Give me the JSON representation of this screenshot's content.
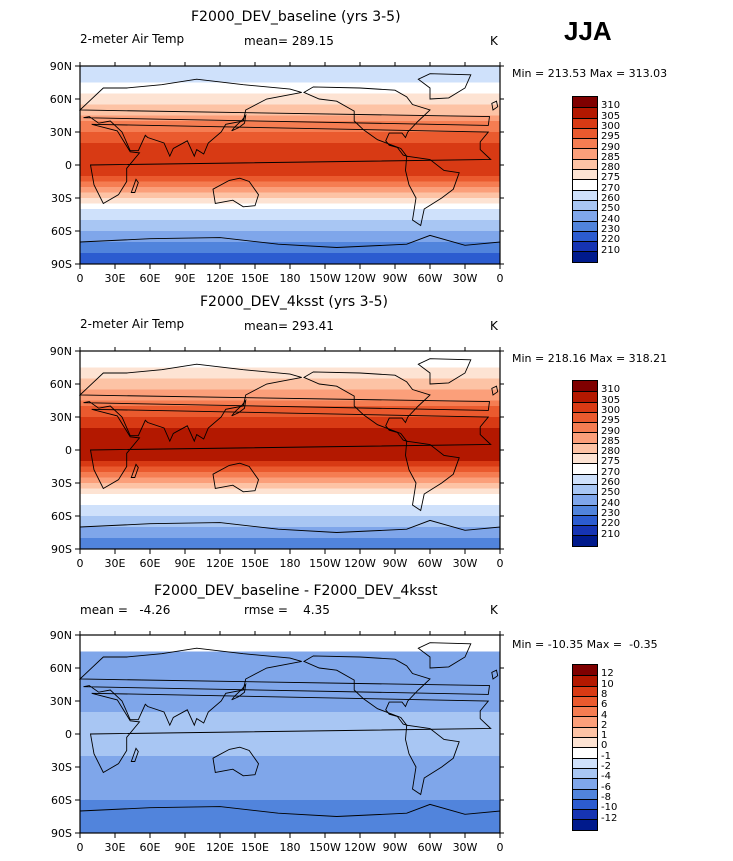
{
  "season": "JJA",
  "axis": {
    "lon_ticks": [
      "0",
      "30E",
      "60E",
      "90E",
      "120E",
      "150E",
      "180",
      "150W",
      "120W",
      "90W",
      "60W",
      "30W",
      "0"
    ],
    "lat_ticks": [
      "90N",
      "60N",
      "30N",
      "0",
      "30S",
      "60S",
      "90S"
    ]
  },
  "panels": [
    {
      "title": "F2000_DEV_baseline (yrs 3-5)",
      "left": "2-meter Air Temp",
      "center": "mean= 289.15",
      "right": "K",
      "minmax": "Min = 213.53 Max = 313.03",
      "colorbar": {
        "labels": [
          "310",
          "305",
          "300",
          "295",
          "290",
          "285",
          "280",
          "275",
          "270",
          "260",
          "250",
          "240",
          "230",
          "220",
          "210"
        ],
        "colors": [
          "#7f0000",
          "#b31800",
          "#d83a14",
          "#ea5a2e",
          "#f57d52",
          "#fb9f7a",
          "#fdc3a5",
          "#fde3d3",
          "#ffffff",
          "#cfe1fb",
          "#a8c6f3",
          "#7fa6ea",
          "#5184dc",
          "#2c5cd0",
          "#1634b3",
          "#001a8c"
        ]
      },
      "field": "baseline"
    },
    {
      "title": "F2000_DEV_4ksst (yrs 3-5)",
      "left": "2-meter Air Temp",
      "center": "mean= 293.41",
      "right": "K",
      "minmax": "Min = 218.16 Max = 318.21",
      "colorbar": {
        "labels": [
          "310",
          "305",
          "300",
          "295",
          "290",
          "285",
          "280",
          "275",
          "270",
          "260",
          "250",
          "240",
          "230",
          "220",
          "210"
        ],
        "colors": [
          "#7f0000",
          "#b31800",
          "#d83a14",
          "#ea5a2e",
          "#f57d52",
          "#fb9f7a",
          "#fdc3a5",
          "#fde3d3",
          "#ffffff",
          "#cfe1fb",
          "#a8c6f3",
          "#7fa6ea",
          "#5184dc",
          "#2c5cd0",
          "#1634b3",
          "#001a8c"
        ]
      },
      "field": "warm"
    },
    {
      "title": "F2000_DEV_baseline - F2000_DEV_4ksst",
      "left": "mean =   -4.26",
      "center": "rmse =    4.35",
      "right": "K",
      "minmax": "Min = -10.35 Max =  -0.35",
      "colorbar": {
        "labels": [
          "12",
          "10",
          "8",
          "6",
          "4",
          "2",
          "1",
          "0",
          "-1",
          "-2",
          "-4",
          "-6",
          "-8",
          "-10",
          "-12"
        ],
        "colors": [
          "#7f0000",
          "#b31800",
          "#d83a14",
          "#ea5a2e",
          "#f57d52",
          "#fb9f7a",
          "#fdc3a5",
          "#fde3d3",
          "#ffffff",
          "#cfe1fb",
          "#a8c6f3",
          "#7fa6ea",
          "#5184dc",
          "#2c5cd0",
          "#1634b3",
          "#001a8c"
        ]
      },
      "field": "diff"
    }
  ]
}
